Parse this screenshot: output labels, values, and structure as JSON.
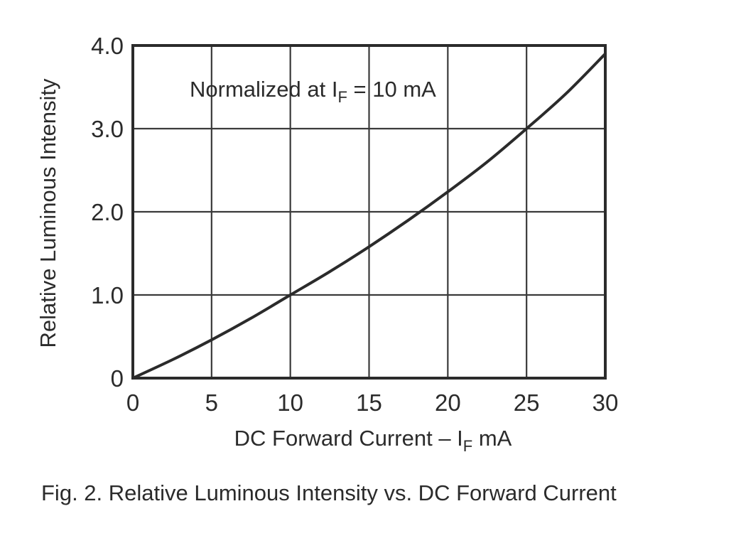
{
  "chart_data": {
    "type": "line",
    "xlabel": {
      "main": "DC Forward Current – I",
      "sub": "F",
      "unit": " mA"
    },
    "ylabel": "Relative Luminous Intensity",
    "annotation": {
      "main": "Normalized at I",
      "sub": "F",
      "rest": " = 10 mA"
    },
    "xlim": [
      0,
      30
    ],
    "ylim": [
      0,
      4
    ],
    "x_ticks": [
      0,
      5,
      10,
      15,
      20,
      25,
      30
    ],
    "x_tick_labels": [
      "0",
      "5",
      "10",
      "15",
      "20",
      "25",
      "30"
    ],
    "y_ticks": [
      0,
      1,
      2,
      3,
      4
    ],
    "y_tick_labels": [
      "0",
      "1.0",
      "2.0",
      "3.0",
      "4.0"
    ],
    "grid": true,
    "series": [
      {
        "x": [
          0,
          2.5,
          5,
          7.5,
          10,
          12.5,
          15,
          17.5,
          20,
          22.5,
          25,
          27.5,
          30
        ],
        "y": [
          0,
          0.22,
          0.46,
          0.72,
          1.0,
          1.28,
          1.58,
          1.9,
          2.24,
          2.6,
          3.0,
          3.42,
          3.9
        ]
      }
    ]
  },
  "caption": "Fig. 2. Relative Luminous Intensity vs. DC Forward Current",
  "colors": {
    "line": "#2b2b2b",
    "grid": "#3a3a3a",
    "text": "#2b2b2b"
  }
}
